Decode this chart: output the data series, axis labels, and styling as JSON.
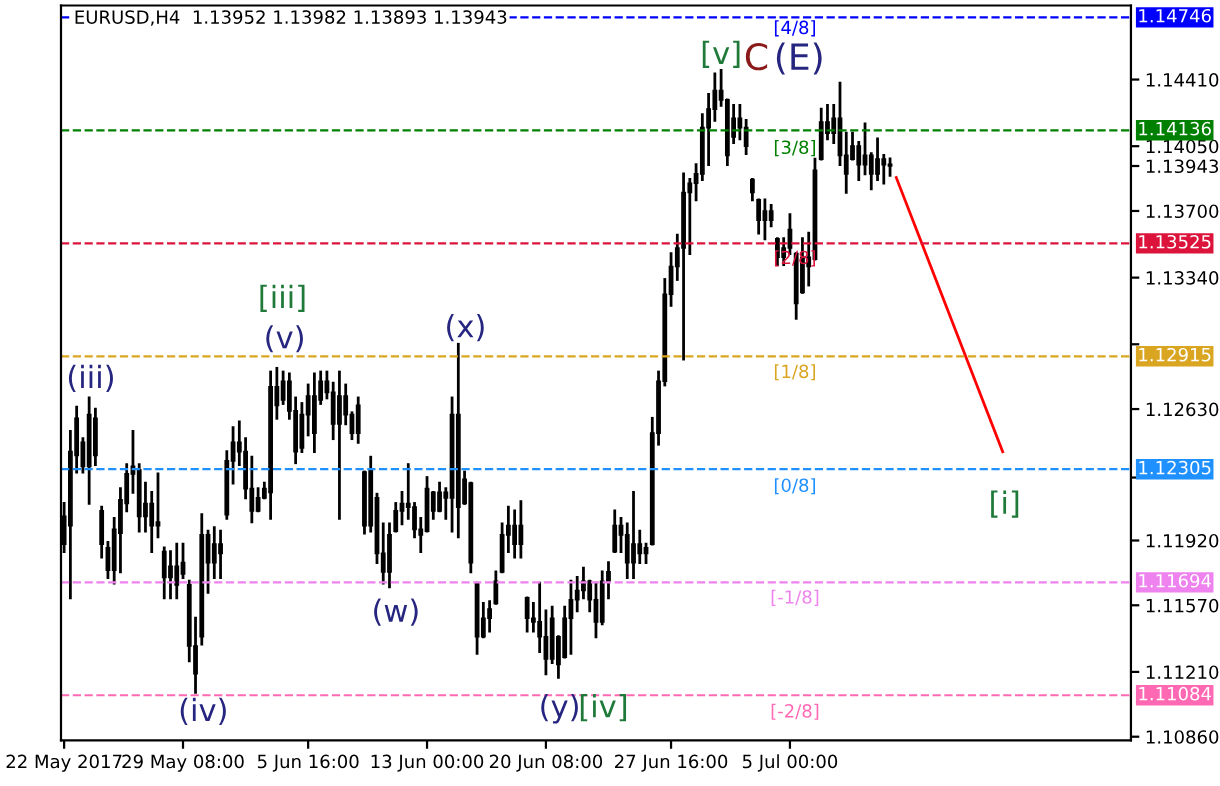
{
  "chart_data": {
    "type": "candlestick",
    "title": "EURUSD,H4  1.13952 1.13982 1.13893 1.13943",
    "categories": [
      "22 May 2017",
      null,
      null,
      null,
      null,
      null,
      null,
      null,
      null,
      null,
      null,
      null,
      null,
      null,
      null,
      null,
      null,
      null,
      null,
      "29 May 08:00",
      null,
      null,
      null,
      null,
      null,
      null,
      null,
      null,
      null,
      null,
      null,
      null,
      null,
      null,
      null,
      null,
      null,
      null,
      null,
      "5 Jun 16:00",
      null,
      null,
      null,
      null,
      null,
      null,
      null,
      null,
      null,
      null,
      null,
      null,
      null,
      null,
      null,
      null,
      null,
      null,
      "13 Jun 00:00",
      null,
      null,
      null,
      null,
      null,
      null,
      null,
      null,
      null,
      null,
      null,
      null,
      null,
      null,
      null,
      null,
      null,
      null,
      "20 Jun 08:00",
      null,
      null,
      null,
      null,
      null,
      null,
      null,
      null,
      null,
      null,
      null,
      null,
      null,
      null,
      null,
      null,
      null,
      null,
      null,
      "27 Jun 16:00",
      null,
      null,
      null,
      null,
      null,
      null,
      null,
      null,
      null,
      null,
      null,
      null,
      null,
      null,
      null,
      null,
      null,
      null,
      "5 Jul 00:00",
      null,
      null,
      null,
      null,
      null,
      null,
      null,
      null,
      null,
      null,
      null,
      null,
      null,
      null,
      null,
      null,
      null,
      null,
      null,
      null,
      null,
      null,
      null,
      null,
      null,
      null,
      null,
      null,
      null,
      null,
      null,
      null,
      null,
      null,
      null,
      null,
      null,
      null,
      null,
      null,
      null,
      null,
      null,
      null,
      null,
      null,
      null,
      null,
      null,
      null,
      null,
      null,
      null,
      null
    ],
    "series": [
      {
        "color": "#000000",
        "ohlc": [
          [
            1.119,
            1.1212,
            1.1186,
            1.1205
          ],
          [
            1.12,
            1.1251,
            1.1161,
            1.124
          ],
          [
            1.1238,
            1.1264,
            1.1229,
            1.1258
          ],
          [
            1.1245,
            1.1247,
            1.1229,
            1.1232
          ],
          [
            1.1232,
            1.1269,
            1.1212,
            1.126
          ],
          [
            1.1258,
            1.1263,
            1.1233,
            1.1238
          ],
          [
            1.1208,
            1.121,
            1.1183,
            1.119
          ],
          [
            1.1188,
            1.1191,
            1.1172,
            1.1176
          ],
          [
            1.1176,
            1.1204,
            1.1169,
            1.1198
          ],
          [
            1.1196,
            1.122,
            1.1175,
            1.1214
          ],
          [
            1.1212,
            1.1233,
            1.1208,
            1.1228
          ],
          [
            1.1228,
            1.1251,
            1.1218,
            1.1232
          ],
          [
            1.123,
            1.1233,
            1.1197,
            1.1205
          ],
          [
            1.1205,
            1.1223,
            1.1197,
            1.1212
          ],
          [
            1.1212,
            1.1218,
            1.1186,
            1.12
          ],
          [
            1.12,
            1.1228,
            1.1194,
            1.1202
          ],
          [
            1.1186,
            1.1188,
            1.1161,
            1.1172
          ],
          [
            1.1172,
            1.1186,
            1.1161,
            1.1178
          ],
          [
            1.1178,
            1.119,
            1.1161,
            1.1168
          ],
          [
            1.1174,
            1.119,
            1.1172,
            1.118
          ],
          [
            1.1168,
            1.117,
            1.1127,
            1.1135
          ],
          [
            1.1135,
            1.115,
            1.111,
            1.112
          ],
          [
            1.114,
            1.1206,
            1.1136,
            1.1195
          ],
          [
            1.1195,
            1.1197,
            1.1164,
            1.118
          ],
          [
            1.118,
            1.1199,
            1.1172,
            1.119
          ],
          [
            1.119,
            1.1197,
            1.1172,
            1.1185
          ],
          [
            1.1206,
            1.124,
            1.1204,
            1.1235
          ],
          [
            1.1235,
            1.1253,
            1.1223,
            1.1245
          ],
          [
            1.1245,
            1.1256,
            1.1233,
            1.124
          ],
          [
            1.124,
            1.1247,
            1.1215,
            1.122
          ],
          [
            1.122,
            1.1237,
            1.1202,
            1.1208
          ],
          [
            1.1208,
            1.122,
            1.1208,
            1.1215
          ],
          [
            1.1215,
            1.1223,
            1.1215,
            1.122
          ],
          [
            1.1218,
            1.1283,
            1.1204,
            1.1275
          ],
          [
            1.1275,
            1.1285,
            1.1258,
            1.1265
          ],
          [
            1.1268,
            1.1283,
            1.1266,
            1.1278
          ],
          [
            1.1278,
            1.1282,
            1.1258,
            1.1262
          ],
          [
            1.1262,
            1.1269,
            1.1234,
            1.124
          ],
          [
            1.1242,
            1.1266,
            1.124,
            1.126
          ],
          [
            1.126,
            1.1276,
            1.1249,
            1.127
          ],
          [
            1.127,
            1.1282,
            1.124,
            1.125
          ],
          [
            1.1268,
            1.1283,
            1.1266,
            1.1278
          ],
          [
            1.1278,
            1.1283,
            1.1269,
            1.1272
          ],
          [
            1.1272,
            1.1277,
            1.1247,
            1.1255
          ],
          [
            1.1255,
            1.1283,
            1.1204,
            1.127
          ],
          [
            1.127,
            1.1276,
            1.1255,
            1.126
          ],
          [
            1.126,
            1.1261,
            1.1247,
            1.125
          ],
          [
            1.125,
            1.1269,
            1.1245,
            1.1265
          ],
          [
            1.1229,
            1.1229,
            1.1196,
            1.12
          ],
          [
            1.12,
            1.1237,
            1.1197,
            1.123
          ],
          [
            1.1215,
            1.1217,
            1.118,
            1.1185
          ],
          [
            1.1185,
            1.1201,
            1.1169,
            1.1175
          ],
          [
            1.1175,
            1.1201,
            1.1167,
            1.1195
          ],
          [
            1.1197,
            1.1212,
            1.1197,
            1.1208
          ],
          [
            1.1208,
            1.1218,
            1.1201,
            1.1212
          ],
          [
            1.1212,
            1.1233,
            1.1204,
            1.121
          ],
          [
            1.121,
            1.1212,
            1.1194,
            1.1198
          ],
          [
            1.1198,
            1.1204,
            1.1186,
            1.1195
          ],
          [
            1.1197,
            1.1226,
            1.1197,
            1.122
          ],
          [
            1.1218,
            1.1218,
            1.1204,
            1.1208
          ],
          [
            1.1208,
            1.1223,
            1.1208,
            1.1218
          ],
          [
            1.1218,
            1.122,
            1.1204,
            1.1215
          ],
          [
            1.1215,
            1.1269,
            1.1197,
            1.126
          ],
          [
            1.126,
            1.1298,
            1.1194,
            1.121
          ],
          [
            1.1212,
            1.1229,
            1.1212,
            1.1225
          ],
          [
            1.1223,
            1.1223,
            1.1175,
            1.118
          ],
          [
            1.1169,
            1.1169,
            1.1131,
            1.114
          ],
          [
            1.114,
            1.1158,
            1.114,
            1.115
          ],
          [
            1.115,
            1.1159,
            1.1143,
            1.1155
          ],
          [
            1.1158,
            1.1175,
            1.1158,
            1.117
          ],
          [
            1.1175,
            1.1201,
            1.1175,
            1.1195
          ],
          [
            1.1195,
            1.121,
            1.1186,
            1.12
          ],
          [
            1.12,
            1.1208,
            1.1183,
            1.119
          ],
          [
            1.119,
            1.1213,
            1.1183,
            1.12
          ],
          [
            1.1161,
            1.1161,
            1.1143,
            1.115
          ],
          [
            1.115,
            1.1158,
            1.1143,
            1.1148
          ],
          [
            1.1148,
            1.1169,
            1.1132,
            1.114
          ],
          [
            1.114,
            1.1154,
            1.112,
            1.1128
          ],
          [
            1.1128,
            1.1156,
            1.1126,
            1.115
          ],
          [
            1.114,
            1.114,
            1.1118,
            1.1125
          ],
          [
            1.1129,
            1.1156,
            1.1129,
            1.115
          ],
          [
            1.115,
            1.117,
            1.1131,
            1.116
          ],
          [
            1.116,
            1.1172,
            1.1154,
            1.1165
          ],
          [
            1.1165,
            1.1177,
            1.1161,
            1.117
          ],
          [
            1.117,
            1.117,
            1.1154,
            1.116
          ],
          [
            1.116,
            1.1169,
            1.114,
            1.1148
          ],
          [
            1.1148,
            1.1175,
            1.1147,
            1.117
          ],
          [
            1.117,
            1.118,
            1.1161,
            1.1175
          ],
          [
            1.1186,
            1.1208,
            1.1186,
            1.12
          ],
          [
            1.12,
            1.1204,
            1.1186,
            1.1195
          ],
          [
            1.1195,
            1.1201,
            1.1172,
            1.118
          ],
          [
            1.118,
            1.1218,
            1.1172,
            1.119
          ],
          [
            1.119,
            1.1197,
            1.118,
            1.1185
          ],
          [
            1.1185,
            1.119,
            1.118,
            1.1188
          ],
          [
            1.119,
            1.1258,
            1.119,
            1.125
          ],
          [
            1.125,
            1.1283,
            1.1244,
            1.1278
          ],
          [
            1.1278,
            1.1333,
            1.1276,
            1.1325
          ],
          [
            1.1325,
            1.1347,
            1.1319,
            1.134
          ],
          [
            1.134,
            1.1357,
            1.1333,
            1.135
          ],
          [
            1.135,
            1.139,
            1.129,
            1.138
          ],
          [
            1.138,
            1.1387,
            1.1347,
            1.1385
          ],
          [
            1.1385,
            1.1395,
            1.1376,
            1.139
          ],
          [
            1.139,
            1.1422,
            1.1387,
            1.1415
          ],
          [
            1.1415,
            1.1433,
            1.1395,
            1.1425
          ],
          [
            1.1425,
            1.1444,
            1.1419,
            1.1435
          ],
          [
            1.1435,
            1.1446,
            1.1427,
            1.143
          ],
          [
            1.143,
            1.143,
            1.1395,
            1.14
          ],
          [
            1.141,
            1.1427,
            1.1407,
            1.142
          ],
          [
            1.142,
            1.1427,
            1.1409,
            1.1415
          ],
          [
            1.1415,
            1.1419,
            1.1401,
            1.1405
          ],
          [
            1.1387,
            1.1387,
            1.1376,
            1.138
          ],
          [
            1.1376,
            1.1376,
            1.1358,
            1.1365
          ],
          [
            1.1365,
            1.1376,
            1.1355,
            1.137
          ],
          [
            1.137,
            1.1373,
            1.1362,
            1.1365
          ],
          [
            1.1355,
            1.1355,
            1.1341,
            1.1345
          ],
          [
            1.1345,
            1.1355,
            1.1341,
            1.135
          ],
          [
            1.135,
            1.1368,
            1.1347,
            1.136
          ],
          [
            1.1347,
            1.1347,
            1.1312,
            1.132
          ],
          [
            1.1326,
            1.1355,
            1.1326,
            1.1345
          ],
          [
            1.1345,
            1.1358,
            1.133,
            1.134
          ],
          [
            1.1344,
            1.1398,
            1.1344,
            1.1392
          ],
          [
            1.1398,
            1.1425,
            1.1398,
            1.1418
          ],
          [
            1.1418,
            1.1427,
            1.1409,
            1.1412
          ],
          [
            1.1412,
            1.1427,
            1.1407,
            1.142
          ],
          [
            1.142,
            1.1439,
            1.1395,
            1.14
          ],
          [
            1.14,
            1.1412,
            1.138,
            1.139
          ],
          [
            1.1398,
            1.1412,
            1.1398,
            1.1405
          ],
          [
            1.1405,
            1.1407,
            1.1387,
            1.1395
          ],
          [
            1.1395,
            1.1417,
            1.139,
            1.14
          ],
          [
            1.14,
            1.1401,
            1.1382,
            1.139
          ],
          [
            1.139,
            1.1409,
            1.1387,
            1.1398
          ],
          [
            1.1398,
            1.14,
            1.1385,
            1.1395
          ],
          [
            1.13952,
            1.13982,
            1.13893,
            1.13943
          ],
          null,
          null,
          null,
          null,
          null,
          null,
          null,
          null,
          null,
          null,
          null,
          null,
          null,
          null,
          null,
          null,
          null,
          null,
          null,
          null,
          null,
          null,
          null,
          null,
          null,
          null,
          null,
          null,
          null,
          null,
          null,
          null,
          null,
          null,
          null,
          null,
          null,
          null
        ]
      },
      {
        "type": "line",
        "color": "#ff0000",
        "values": [
          null,
          null,
          null,
          null,
          null,
          null,
          null,
          null,
          null,
          null,
          null,
          null,
          null,
          null,
          null,
          null,
          null,
          null,
          null,
          null,
          null,
          null,
          null,
          null,
          null,
          null,
          null,
          null,
          null,
          null,
          null,
          null,
          null,
          null,
          null,
          null,
          null,
          null,
          null,
          null,
          null,
          null,
          null,
          null,
          null,
          null,
          null,
          null,
          null,
          null,
          null,
          null,
          null,
          null,
          null,
          null,
          null,
          null,
          null,
          null,
          null,
          null,
          null,
          null,
          null,
          null,
          null,
          null,
          null,
          null,
          null,
          null,
          null,
          null,
          null,
          null,
          null,
          null,
          null,
          null,
          null,
          null,
          null,
          null,
          null,
          null,
          null,
          null,
          null,
          null,
          null,
          null,
          null,
          null,
          null,
          null,
          null,
          null,
          null,
          null,
          null,
          null,
          null,
          null,
          null,
          null,
          null,
          null,
          null,
          null,
          null,
          null,
          null,
          null,
          null,
          null,
          null,
          null,
          null,
          null,
          null,
          null,
          null,
          null,
          null,
          null,
          null,
          null,
          null,
          null,
          null,
          null,
          null,
          1.1388,
          null,
          null,
          null,
          null,
          null,
          null,
          null,
          null,
          null,
          null,
          null,
          null,
          null,
          null,
          null,
          null,
          1.124,
          null,
          null,
          null,
          null,
          null,
          null,
          null,
          null,
          null,
          null,
          null,
          null,
          null,
          null,
          null,
          null,
          null,
          null,
          null,
          null
        ]
      }
    ],
    "ylim": [
      1.1084,
      1.1481
    ],
    "yticks": [
      {
        "value": 1.1441,
        "label": "1.14410"
      },
      {
        "value": 1.1405,
        "label": "1.14050"
      },
      1.13943,
      {
        "value": 1.137,
        "label": "1.13700"
      },
      {
        "value": 1.1334,
        "label": "1.13340"
      },
      {
        "value": 1.1298,
        "label": null
      },
      {
        "value": 1.1263,
        "label": "1.12630"
      },
      {
        "value": 1.1226,
        "label": null
      },
      {
        "value": 1.1192,
        "label": "1.11920"
      },
      {
        "value": 1.1157,
        "label": "1.11570"
      },
      {
        "value": 1.1121,
        "label": "1.11210"
      },
      {
        "value": 1.1086,
        "label": "1.10860"
      }
    ],
    "ref_lines": [
      {
        "axis": "y",
        "value": 1.14746,
        "label": "1.14746",
        "color": "#0000ff",
        "line_style": "dashed"
      },
      {
        "axis": "y",
        "value": 1.14136,
        "label": "1.14136",
        "color": "#008000",
        "line_style": "dashed"
      },
      {
        "axis": "y",
        "value": 1.13525,
        "label": "1.13525",
        "color": "#dc143c",
        "line_style": "dashed"
      },
      {
        "axis": "y",
        "value": 1.12915,
        "label": "1.12915",
        "color": "#daa520",
        "line_style": "dashed"
      },
      {
        "axis": "y",
        "value": 1.12305,
        "label": "1.12305",
        "color": "#1e90ff",
        "line_style": "dashed"
      },
      {
        "axis": "y",
        "value": 1.11694,
        "label": "1.11694",
        "color": "#ee82ee",
        "line_style": "dashed"
      },
      {
        "axis": "y",
        "value": 1.11084,
        "label": "1.11084",
        "color": "#ff69b4",
        "line_style": "dashed"
      }
    ],
    "annotations": [
      "(iii)",
      "[iii]",
      "(v)",
      "(iv)",
      "(w)",
      "(x)",
      "(y)",
      "[iv]",
      "[v]",
      "C",
      "(E)",
      "[i]",
      "[4/8]",
      "[3/8]",
      "[2/8]",
      "[1/8]",
      "[0/8]",
      "[-1/8]",
      "[-2/8]"
    ],
    "grid": false,
    "legend": false
  }
}
